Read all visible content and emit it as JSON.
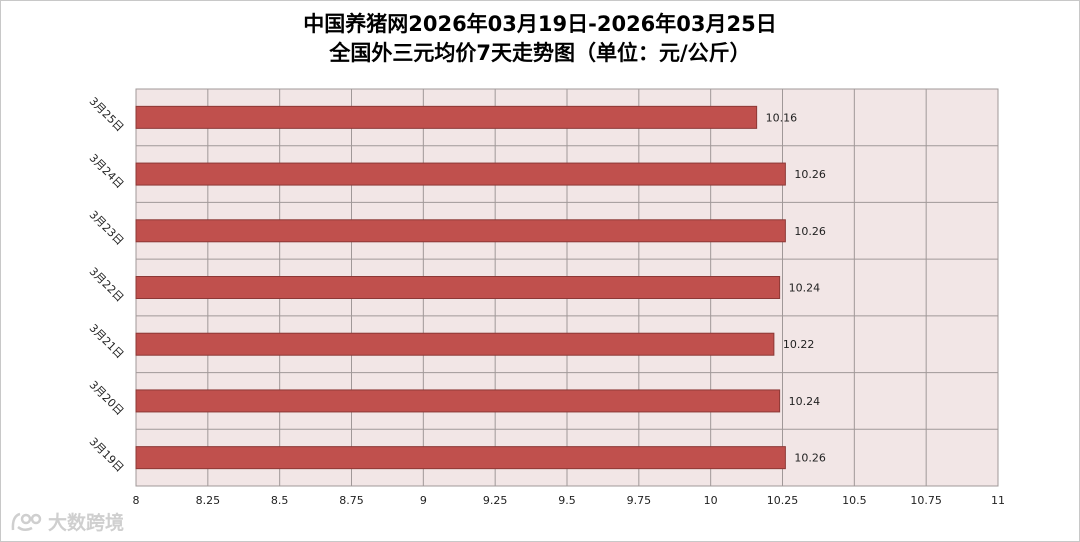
{
  "chart_data": {
    "type": "bar",
    "orientation": "horizontal",
    "title": "中国养猪网2026年03月19日-2026年03月25日",
    "subtitle": "全国外三元均价7天走势图（单位：元/公斤）",
    "categories": [
      "3月25日",
      "3月24日",
      "3月23日",
      "3月22日",
      "3月21日",
      "3月20日",
      "3月19日"
    ],
    "values": [
      10.16,
      10.26,
      10.26,
      10.24,
      10.22,
      10.24,
      10.26
    ],
    "data_labels": [
      "10.16",
      "10.26",
      "10.26",
      "10.24",
      "10.22",
      "10.24",
      "10.26"
    ],
    "xlim": [
      8,
      11
    ],
    "x_ticks": [
      8,
      8.25,
      8.5,
      8.75,
      9,
      9.25,
      9.5,
      9.75,
      10,
      10.25,
      10.5,
      10.75,
      11
    ],
    "x_tick_labels": [
      "8",
      "8.25",
      "8.5",
      "8.75",
      "9",
      "9.25",
      "9.5",
      "9.75",
      "10",
      "10.25",
      "10.5",
      "10.75",
      "11"
    ],
    "grid": true,
    "legend": "none",
    "colors": {
      "bar": "#c0504d",
      "bar_edge": "#8c3836",
      "plot_background": "#f2e6e6",
      "grid": "#a09898"
    }
  },
  "watermark": {
    "text": "大数跨境",
    "icon": "watermark-logo-icon"
  }
}
